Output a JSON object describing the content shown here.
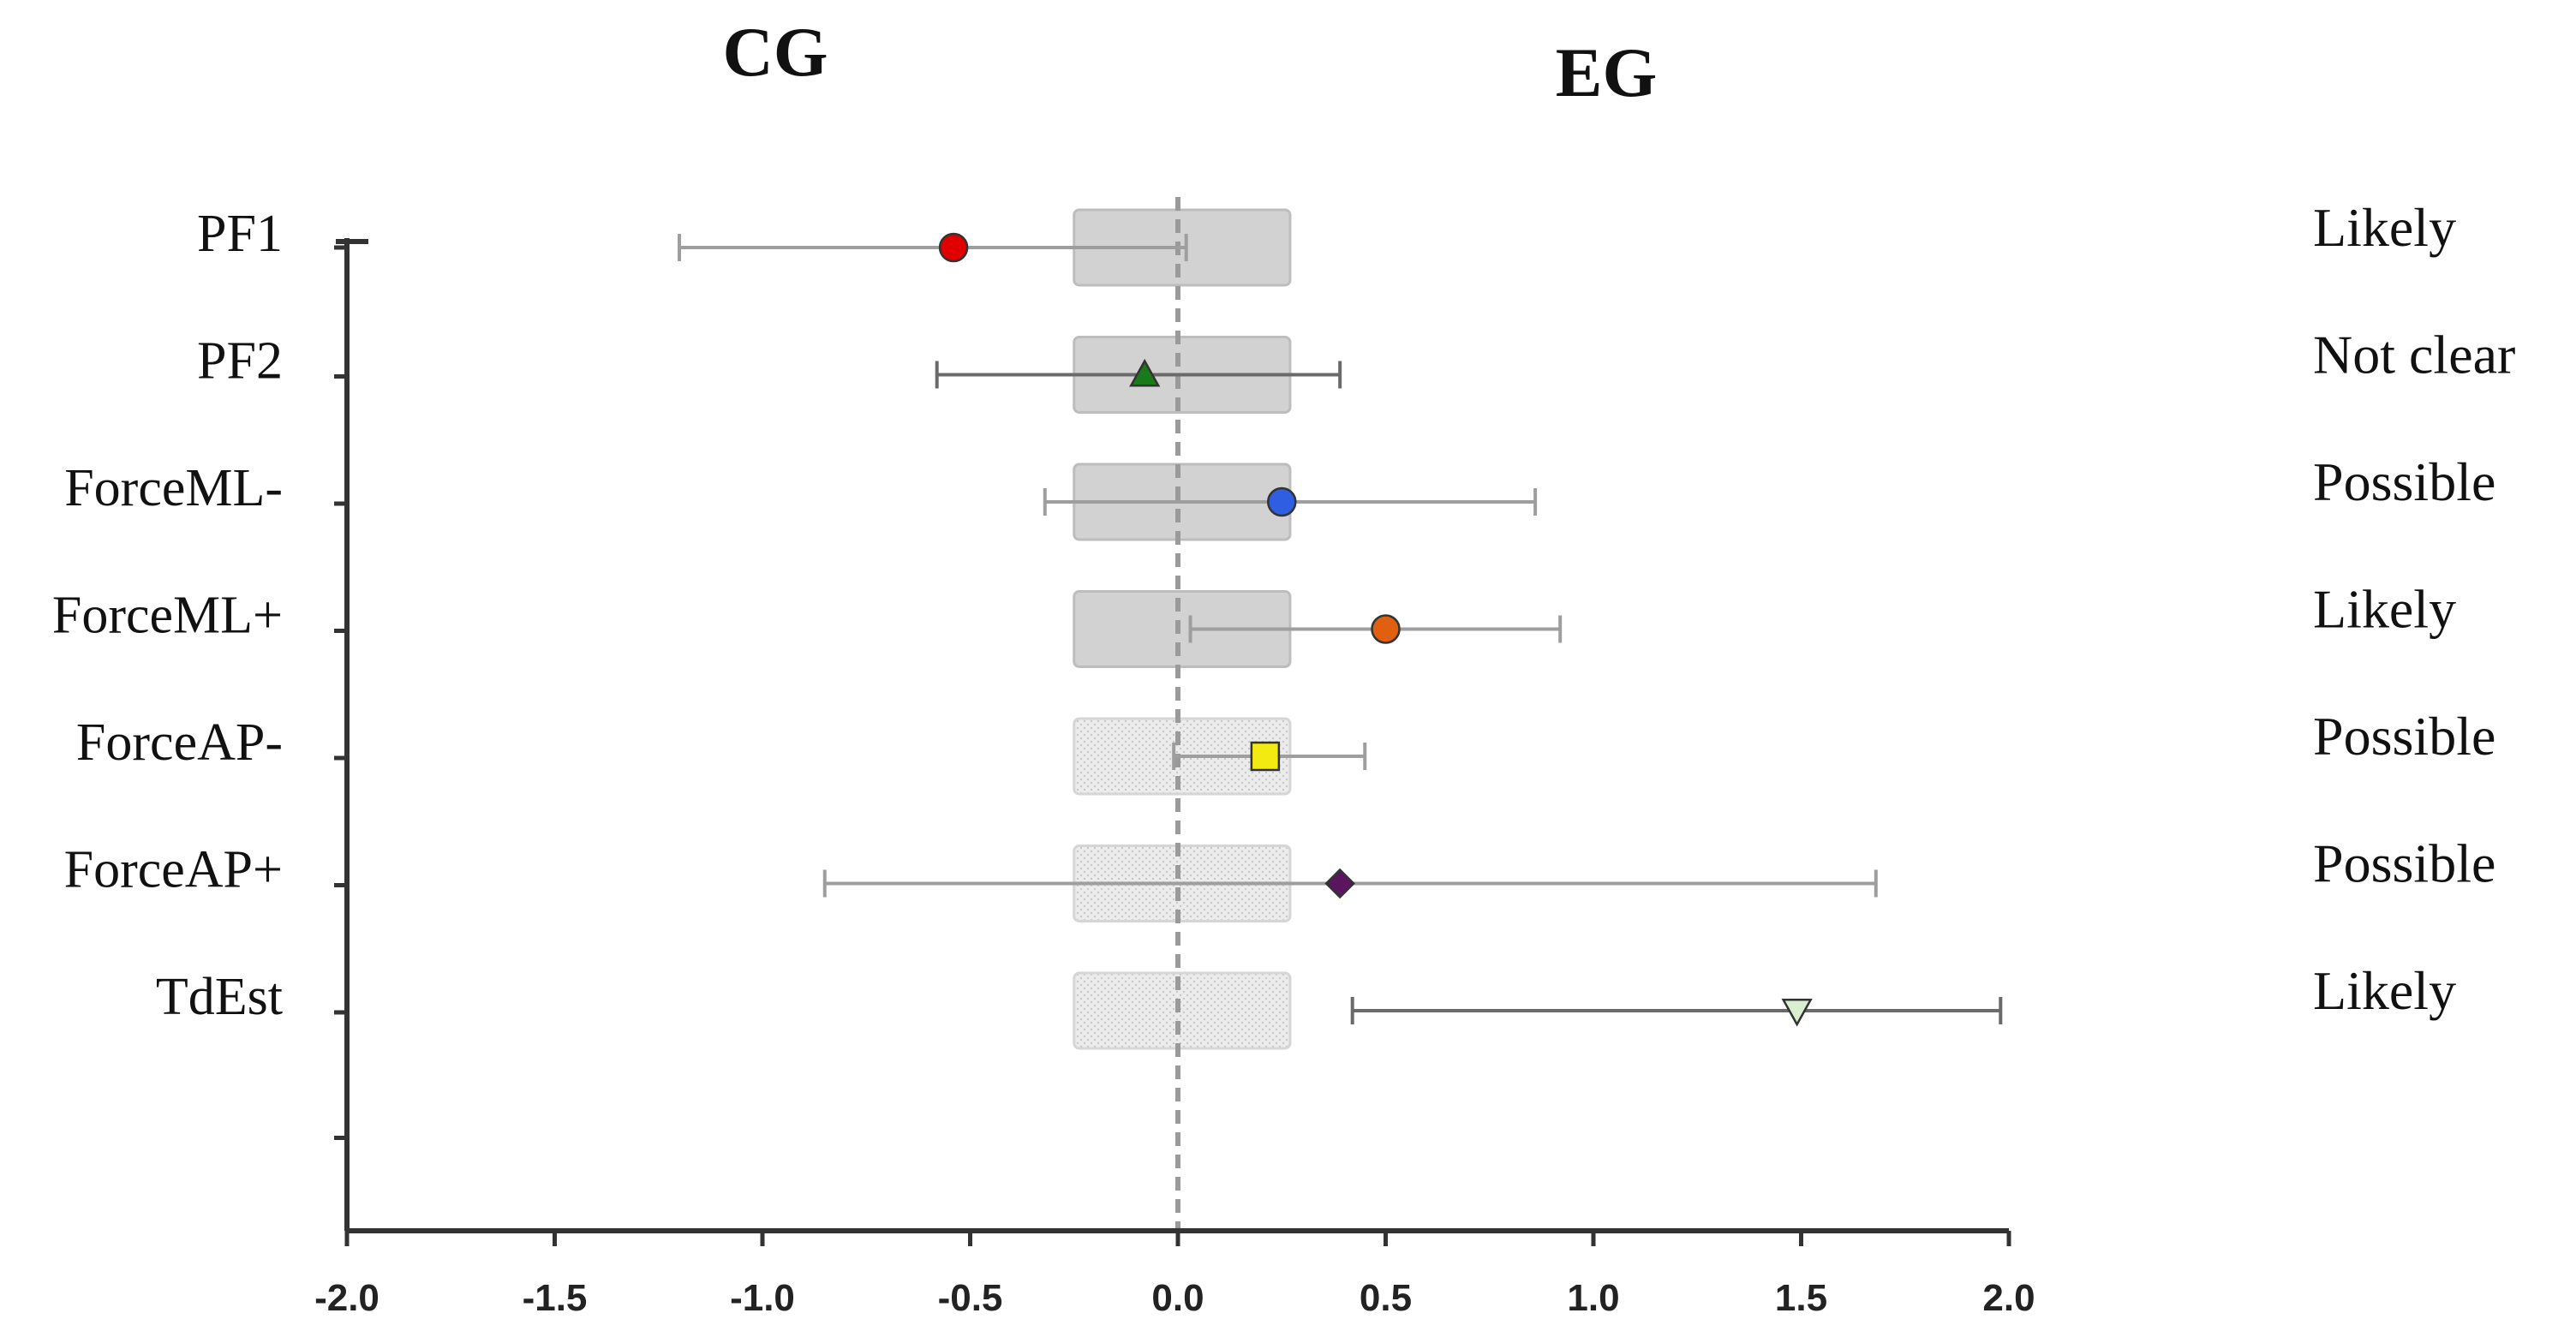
{
  "chart_data": {
    "type": "forest",
    "group_left": "CG",
    "group_right": "EG",
    "xlim": [
      -2.0,
      2.0
    ],
    "xticks": [
      "-2.0",
      "-1.5",
      "-1.0",
      "-0.5",
      "0.0",
      "0.5",
      "1.0",
      "1.5",
      "2.0"
    ],
    "xtick_values": [
      -2.0,
      -1.5,
      -1.0,
      -0.5,
      0.0,
      0.5,
      1.0,
      1.5,
      2.0
    ],
    "reference_line": 0.0,
    "trivial_band": [
      -0.25,
      0.27
    ],
    "rows": [
      {
        "label": "PF1",
        "estimate": -0.54,
        "ci": [
          -1.2,
          0.02
        ],
        "inference": "Likely",
        "marker": "circle",
        "color": "#e00000",
        "band": "solid"
      },
      {
        "label": "PF2",
        "estimate": -0.08,
        "ci": [
          -0.58,
          0.39
        ],
        "inference": "Not clear",
        "marker": "triangle",
        "color": "#1a7a1a",
        "band": "solid"
      },
      {
        "label": "ForceML-",
        "estimate": 0.25,
        "ci": [
          -0.32,
          0.86
        ],
        "inference": "Possible",
        "marker": "circle",
        "color": "#2f5fe0",
        "band": "solid"
      },
      {
        "label": "ForceML+",
        "estimate": 0.5,
        "ci": [
          0.03,
          0.92
        ],
        "inference": "Likely",
        "marker": "circle",
        "color": "#e06010",
        "band": "solid"
      },
      {
        "label": "ForceAP-",
        "estimate": 0.21,
        "ci": [
          -0.01,
          0.45
        ],
        "inference": "Possible",
        "marker": "square",
        "color": "#f2ea10",
        "band": "dotted"
      },
      {
        "label": "ForceAP+",
        "estimate": 0.39,
        "ci": [
          -0.85,
          1.68
        ],
        "inference": "Possible",
        "marker": "diamond",
        "color": "#5a1460",
        "band": "dotted"
      },
      {
        "label": "TdEst",
        "estimate": 1.49,
        "ci": [
          0.42,
          1.98
        ],
        "inference": "Likely",
        "marker": "triangle-down",
        "color": "#d8f0d0",
        "band": "dotted"
      }
    ]
  }
}
